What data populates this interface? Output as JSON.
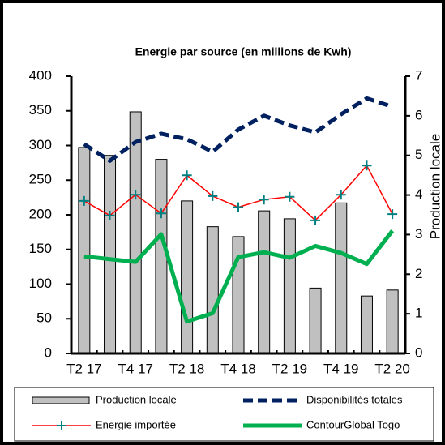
{
  "chart_data": {
    "type": "bar",
    "title": "Energie par source (en millions de Kwh)",
    "y2label": "Production locale",
    "categories": [
      "T2 17",
      null,
      "T4 17",
      null,
      "T2 18",
      null,
      "T4 18",
      null,
      "T2 19",
      null,
      "T4 19",
      null,
      "T2 20"
    ],
    "ylim": [
      0,
      400
    ],
    "yticks": [
      0,
      50,
      100,
      150,
      200,
      250,
      300,
      350,
      400
    ],
    "y2lim": [
      0,
      7
    ],
    "y2ticks": [
      0,
      1,
      2,
      3,
      4,
      5,
      6,
      7
    ],
    "series": [
      {
        "name": "Production locale",
        "type": "bar",
        "axis": "y2",
        "color": "#c0c0c0",
        "values": [
          5.2,
          5.0,
          6.1,
          4.9,
          3.85,
          3.2,
          2.95,
          3.6,
          3.4,
          1.65,
          3.8,
          1.45,
          1.6
        ]
      },
      {
        "name": "Disponibilités totales",
        "type": "line",
        "color": "#002060",
        "dash": true,
        "values": [
          302,
          278,
          305,
          317,
          309,
          291,
          323,
          343,
          329,
          319,
          345,
          368,
          356
        ]
      },
      {
        "name": "Energie importée",
        "type": "line",
        "color": "#ff0000",
        "marker": "+",
        "marker_color": "#008080",
        "values": [
          220,
          199,
          229,
          202,
          257,
          227,
          211,
          222,
          226,
          192,
          229,
          271,
          201
        ]
      },
      {
        "name": "ContourGlobal Togo",
        "type": "line",
        "color": "#00b050",
        "values": [
          140,
          136,
          132,
          172,
          46,
          58,
          139,
          146,
          138,
          155,
          145,
          129,
          177
        ]
      }
    ]
  }
}
